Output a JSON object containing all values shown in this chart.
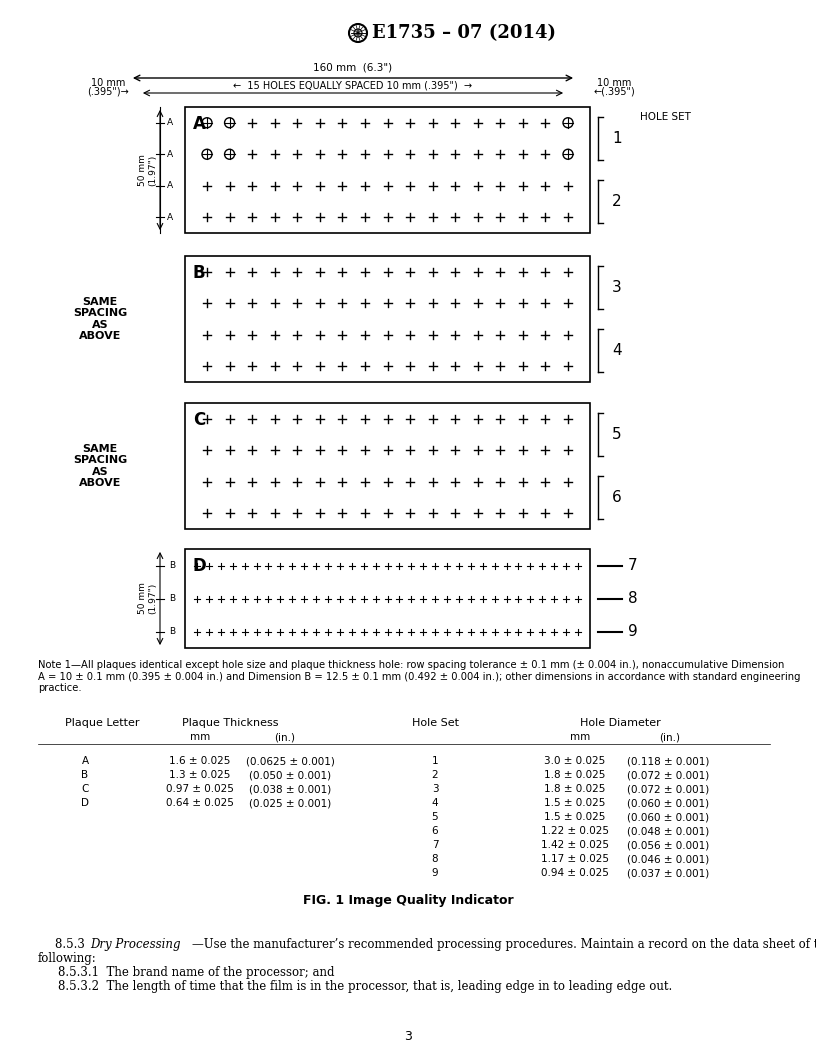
{
  "bg_color": "#ffffff",
  "title_text": "E1735 – 07 (2014)",
  "dim_160mm": "160 mm  (6.3\")",
  "dim_10mm_left_1": "10 mm",
  "dim_10mm_left_2": "(.395\")→",
  "dim_10mm_right_1": "10 mm",
  "dim_10mm_right_2": "←(.395\")",
  "dim_15holes": "←  15 HOLES EQUALLY SPACED 10 mm (.395\")  →",
  "dim_50mm_A": "50 mm\n(1.97\")",
  "dim_50mm_D": "50 mm\n(1.97\")",
  "same_spacing_text": "SAME\nSPACING\nAS\nABOVE",
  "hole_set_label": "HOLE SET",
  "note_text": "Note 1—All plaques identical except hole size and plaque thickness hole: row spacing tolerance ± 0.1 mm (± 0.004 in.), nonaccumulative Dimension\nA = 10 ± 0.1 mm (0.395 ± 0.004 in.) and Dimension B = 12.5 ± 0.1 mm (0.492 ± 0.004 in.); other dimensions in accordance with standard engineering\npractice.",
  "plaque_data": [
    [
      "A",
      "1.6 ± 0.025",
      "(0.0625 ± 0.001)"
    ],
    [
      "B",
      "1.3 ± 0.025",
      "(0.050 ± 0.001)"
    ],
    [
      "C",
      "0.97 ± 0.025",
      "(0.038 ± 0.001)"
    ],
    [
      "D",
      "0.64 ± 0.025",
      "(0.025 ± 0.001)"
    ]
  ],
  "hole_data": [
    [
      "1",
      "3.0 ± 0.025",
      "(0.118 ± 0.001)"
    ],
    [
      "2",
      "1.8 ± 0.025",
      "(0.072 ± 0.001)"
    ],
    [
      "3",
      "1.8 ± 0.025",
      "(0.072 ± 0.001)"
    ],
    [
      "4",
      "1.5 ± 0.025",
      "(0.060 ± 0.001)"
    ],
    [
      "5",
      "1.5 ± 0.025",
      "(0.060 ± 0.001)"
    ],
    [
      "6",
      "1.22 ± 0.025",
      "(0.048 ± 0.001)"
    ],
    [
      "7",
      "1.42 ± 0.025",
      "(0.056 ± 0.001)"
    ],
    [
      "8",
      "1.17 ± 0.025",
      "(0.046 ± 0.001)"
    ],
    [
      "9",
      "0.94 ± 0.025",
      "(0.037 ± 0.001)"
    ]
  ],
  "fig_caption": "FIG. 1 Image Quality Indicator",
  "body_8531": "8.5.3.1  The brand name of the processor; and",
  "body_8532": "8.5.3.2  The length of time that the film is in the processor, that is, leading edge in to leading edge out.",
  "page_number": "3"
}
